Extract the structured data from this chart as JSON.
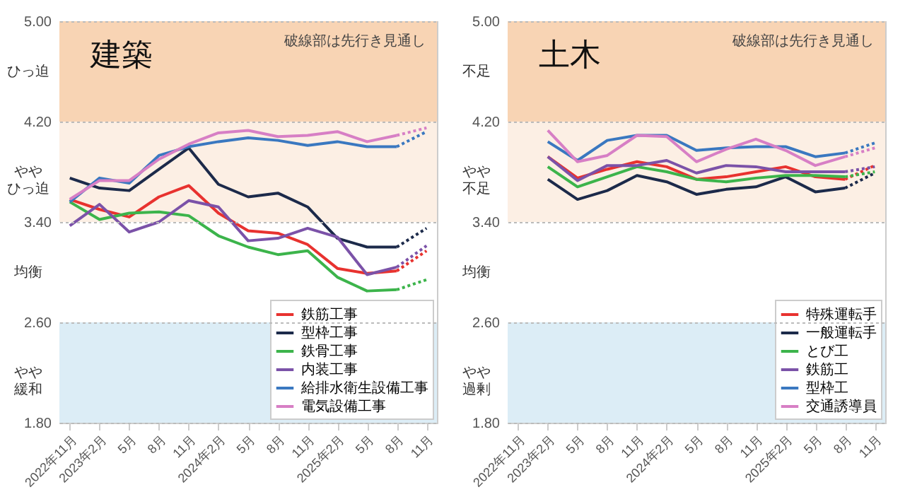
{
  "chart_data": [
    {
      "type": "line",
      "title": "建築",
      "annotations": [
        "破線部は先行き見通し"
      ],
      "categories": [
        "2022年11月",
        "2023年2月",
        "5月",
        "8月",
        "11月",
        "2024年2月",
        "5月",
        "8月",
        "11月",
        "2025年2月",
        "5月",
        "8月",
        "11月"
      ],
      "series": [
        {
          "name": "鉄筋工事",
          "color": "#e8322f",
          "values": [
            3.58,
            3.5,
            3.44,
            3.6,
            3.69,
            3.47,
            3.33,
            3.31,
            3.22,
            3.03,
            2.99,
            3.01,
            null
          ]
        },
        {
          "name": "型枠工事",
          "color": "#1c2a4a",
          "values": [
            3.75,
            3.67,
            3.65,
            3.82,
            3.99,
            3.7,
            3.6,
            3.63,
            3.52,
            3.27,
            3.2,
            3.2,
            null
          ]
        },
        {
          "name": "鉄骨工事",
          "color": "#3cb44b",
          "values": [
            3.56,
            3.42,
            3.47,
            3.48,
            3.45,
            3.29,
            3.2,
            3.14,
            3.17,
            2.96,
            2.85,
            2.86,
            null
          ]
        },
        {
          "name": "内装工事",
          "color": "#7b52a8",
          "values": [
            3.37,
            3.54,
            3.32,
            3.4,
            3.57,
            3.52,
            3.25,
            3.27,
            3.35,
            3.28,
            2.98,
            3.04,
            null
          ]
        },
        {
          "name": "給排水衛生設備工事",
          "color": "#3a78c0",
          "values": [
            3.56,
            3.75,
            3.71,
            3.93,
            4.0,
            4.04,
            4.07,
            4.05,
            4.01,
            4.04,
            4.0,
            4.0,
            null
          ]
        },
        {
          "name": "電気設備工事",
          "color": "#d77fc5",
          "values": [
            3.58,
            3.73,
            3.73,
            3.9,
            4.02,
            4.11,
            4.13,
            4.08,
            4.09,
            4.12,
            4.04,
            4.09,
            null
          ]
        },
        {
          "color": "#e8322f",
          "line_style": "dotted",
          "values": [
            null,
            null,
            null,
            null,
            null,
            null,
            null,
            null,
            null,
            null,
            null,
            3.01,
            3.17
          ]
        },
        {
          "color": "#1c2a4a",
          "line_style": "dotted",
          "values": [
            null,
            null,
            null,
            null,
            null,
            null,
            null,
            null,
            null,
            null,
            null,
            3.2,
            3.35
          ]
        },
        {
          "color": "#3cb44b",
          "line_style": "dotted",
          "values": [
            null,
            null,
            null,
            null,
            null,
            null,
            null,
            null,
            null,
            null,
            null,
            2.86,
            2.94
          ]
        },
        {
          "color": "#7b52a8",
          "line_style": "dotted",
          "values": [
            null,
            null,
            null,
            null,
            null,
            null,
            null,
            null,
            null,
            null,
            null,
            3.04,
            3.21
          ]
        },
        {
          "color": "#3a78c0",
          "line_style": "dotted",
          "values": [
            null,
            null,
            null,
            null,
            null,
            null,
            null,
            null,
            null,
            null,
            null,
            4.0,
            4.12
          ]
        },
        {
          "color": "#d77fc5",
          "line_style": "dotted",
          "values": [
            null,
            null,
            null,
            null,
            null,
            null,
            null,
            null,
            null,
            null,
            null,
            4.09,
            4.15
          ]
        }
      ],
      "ylim": [
        1.8,
        5.0
      ],
      "yticks": [
        {
          "value": 1.8,
          "label": "1.80"
        },
        {
          "value": 2.6,
          "label": "2.60"
        },
        {
          "value": 3.4,
          "label": "3.40"
        },
        {
          "value": 4.2,
          "label": "4.20"
        },
        {
          "value": 5.0,
          "label": "5.00"
        }
      ],
      "bands": [
        {
          "axis": "y",
          "from": 4.2,
          "to": 5.0,
          "label": "ひっ迫",
          "color": "#f8d4b4"
        },
        {
          "axis": "y",
          "from": 3.4,
          "to": 4.2,
          "label": "ややひっ迫",
          "color": "#fcefe4"
        },
        {
          "axis": "y",
          "from": 2.6,
          "to": 3.4,
          "label": "均衡",
          "color": "#ffffff"
        },
        {
          "axis": "y",
          "from": 1.8,
          "to": 2.6,
          "label": "やや緩和",
          "color": "#dcedf6"
        }
      ],
      "grid": "y",
      "legend": "bottom right",
      "line_style": "solid"
    },
    {
      "type": "line",
      "title": "土木",
      "annotations": [
        "破線部は先行き見通し"
      ],
      "categories": [
        "2022年11月",
        "2023年2月",
        "5月",
        "8月",
        "11月",
        "2024年2月",
        "5月",
        "8月",
        "11月",
        "2025年2月",
        "5月",
        "8月",
        "11月"
      ],
      "series": [
        {
          "name": "特殊運転手",
          "color": "#e8322f",
          "values": [
            null,
            3.92,
            3.75,
            3.82,
            3.88,
            3.84,
            3.74,
            3.76,
            3.8,
            3.84,
            3.76,
            3.74,
            null
          ]
        },
        {
          "name": "一般運転手",
          "color": "#1c2a4a",
          "values": [
            null,
            3.74,
            3.58,
            3.65,
            3.77,
            3.72,
            3.62,
            3.66,
            3.68,
            3.76,
            3.64,
            3.67,
            null
          ]
        },
        {
          "name": "とび工",
          "color": "#3cb44b",
          "values": [
            null,
            3.84,
            3.68,
            3.76,
            3.84,
            3.8,
            3.74,
            3.72,
            3.75,
            3.77,
            3.77,
            3.76,
            null
          ]
        },
        {
          "name": "鉄筋工",
          "color": "#7b52a8",
          "values": [
            null,
            3.92,
            3.73,
            3.85,
            3.85,
            3.89,
            3.79,
            3.85,
            3.84,
            3.8,
            3.8,
            3.8,
            null
          ]
        },
        {
          "name": "型枠工",
          "color": "#3a78c0",
          "values": [
            null,
            4.04,
            3.89,
            4.05,
            4.09,
            4.09,
            3.97,
            3.99,
            4.0,
            4.0,
            3.92,
            3.95,
            null
          ]
        },
        {
          "name": "交通誘導員",
          "color": "#d77fc5",
          "values": [
            null,
            4.13,
            3.88,
            3.93,
            4.09,
            4.08,
            3.88,
            3.98,
            4.06,
            3.97,
            3.85,
            3.92,
            null
          ]
        },
        {
          "color": "#e8322f",
          "line_style": "dotted",
          "values": [
            null,
            null,
            null,
            null,
            null,
            null,
            null,
            null,
            null,
            null,
            null,
            3.74,
            3.85
          ]
        },
        {
          "color": "#1c2a4a",
          "line_style": "dotted",
          "values": [
            null,
            null,
            null,
            null,
            null,
            null,
            null,
            null,
            null,
            null,
            null,
            3.67,
            3.79
          ]
        },
        {
          "color": "#3cb44b",
          "line_style": "dotted",
          "values": [
            null,
            null,
            null,
            null,
            null,
            null,
            null,
            null,
            null,
            null,
            null,
            3.76,
            3.8
          ]
        },
        {
          "color": "#7b52a8",
          "line_style": "dotted",
          "values": [
            null,
            null,
            null,
            null,
            null,
            null,
            null,
            null,
            null,
            null,
            null,
            3.8,
            3.84
          ]
        },
        {
          "color": "#3a78c0",
          "line_style": "dotted",
          "values": [
            null,
            null,
            null,
            null,
            null,
            null,
            null,
            null,
            null,
            null,
            null,
            3.95,
            4.03
          ]
        },
        {
          "color": "#d77fc5",
          "line_style": "dotted",
          "values": [
            null,
            null,
            null,
            null,
            null,
            null,
            null,
            null,
            null,
            null,
            null,
            3.92,
            3.99
          ]
        }
      ],
      "ylim": [
        1.8,
        5.0
      ],
      "yticks": [
        {
          "value": 1.8,
          "label": "1.80"
        },
        {
          "value": 2.6,
          "label": "2.60"
        },
        {
          "value": 3.4,
          "label": "3.40"
        },
        {
          "value": 4.2,
          "label": "4.20"
        },
        {
          "value": 5.0,
          "label": "5.00"
        }
      ],
      "bands": [
        {
          "axis": "y",
          "from": 4.2,
          "to": 5.0,
          "label": "不足",
          "color": "#f8d4b4"
        },
        {
          "axis": "y",
          "from": 3.4,
          "to": 4.2,
          "label": "やや不足",
          "color": "#fcefe4"
        },
        {
          "axis": "y",
          "from": 2.6,
          "to": 3.4,
          "label": "均衡",
          "color": "#ffffff"
        },
        {
          "axis": "y",
          "from": 1.8,
          "to": 2.6,
          "label": "やや過剰",
          "color": "#dcedf6"
        }
      ],
      "grid": "y",
      "legend": "bottom right",
      "line_style": "solid"
    }
  ]
}
